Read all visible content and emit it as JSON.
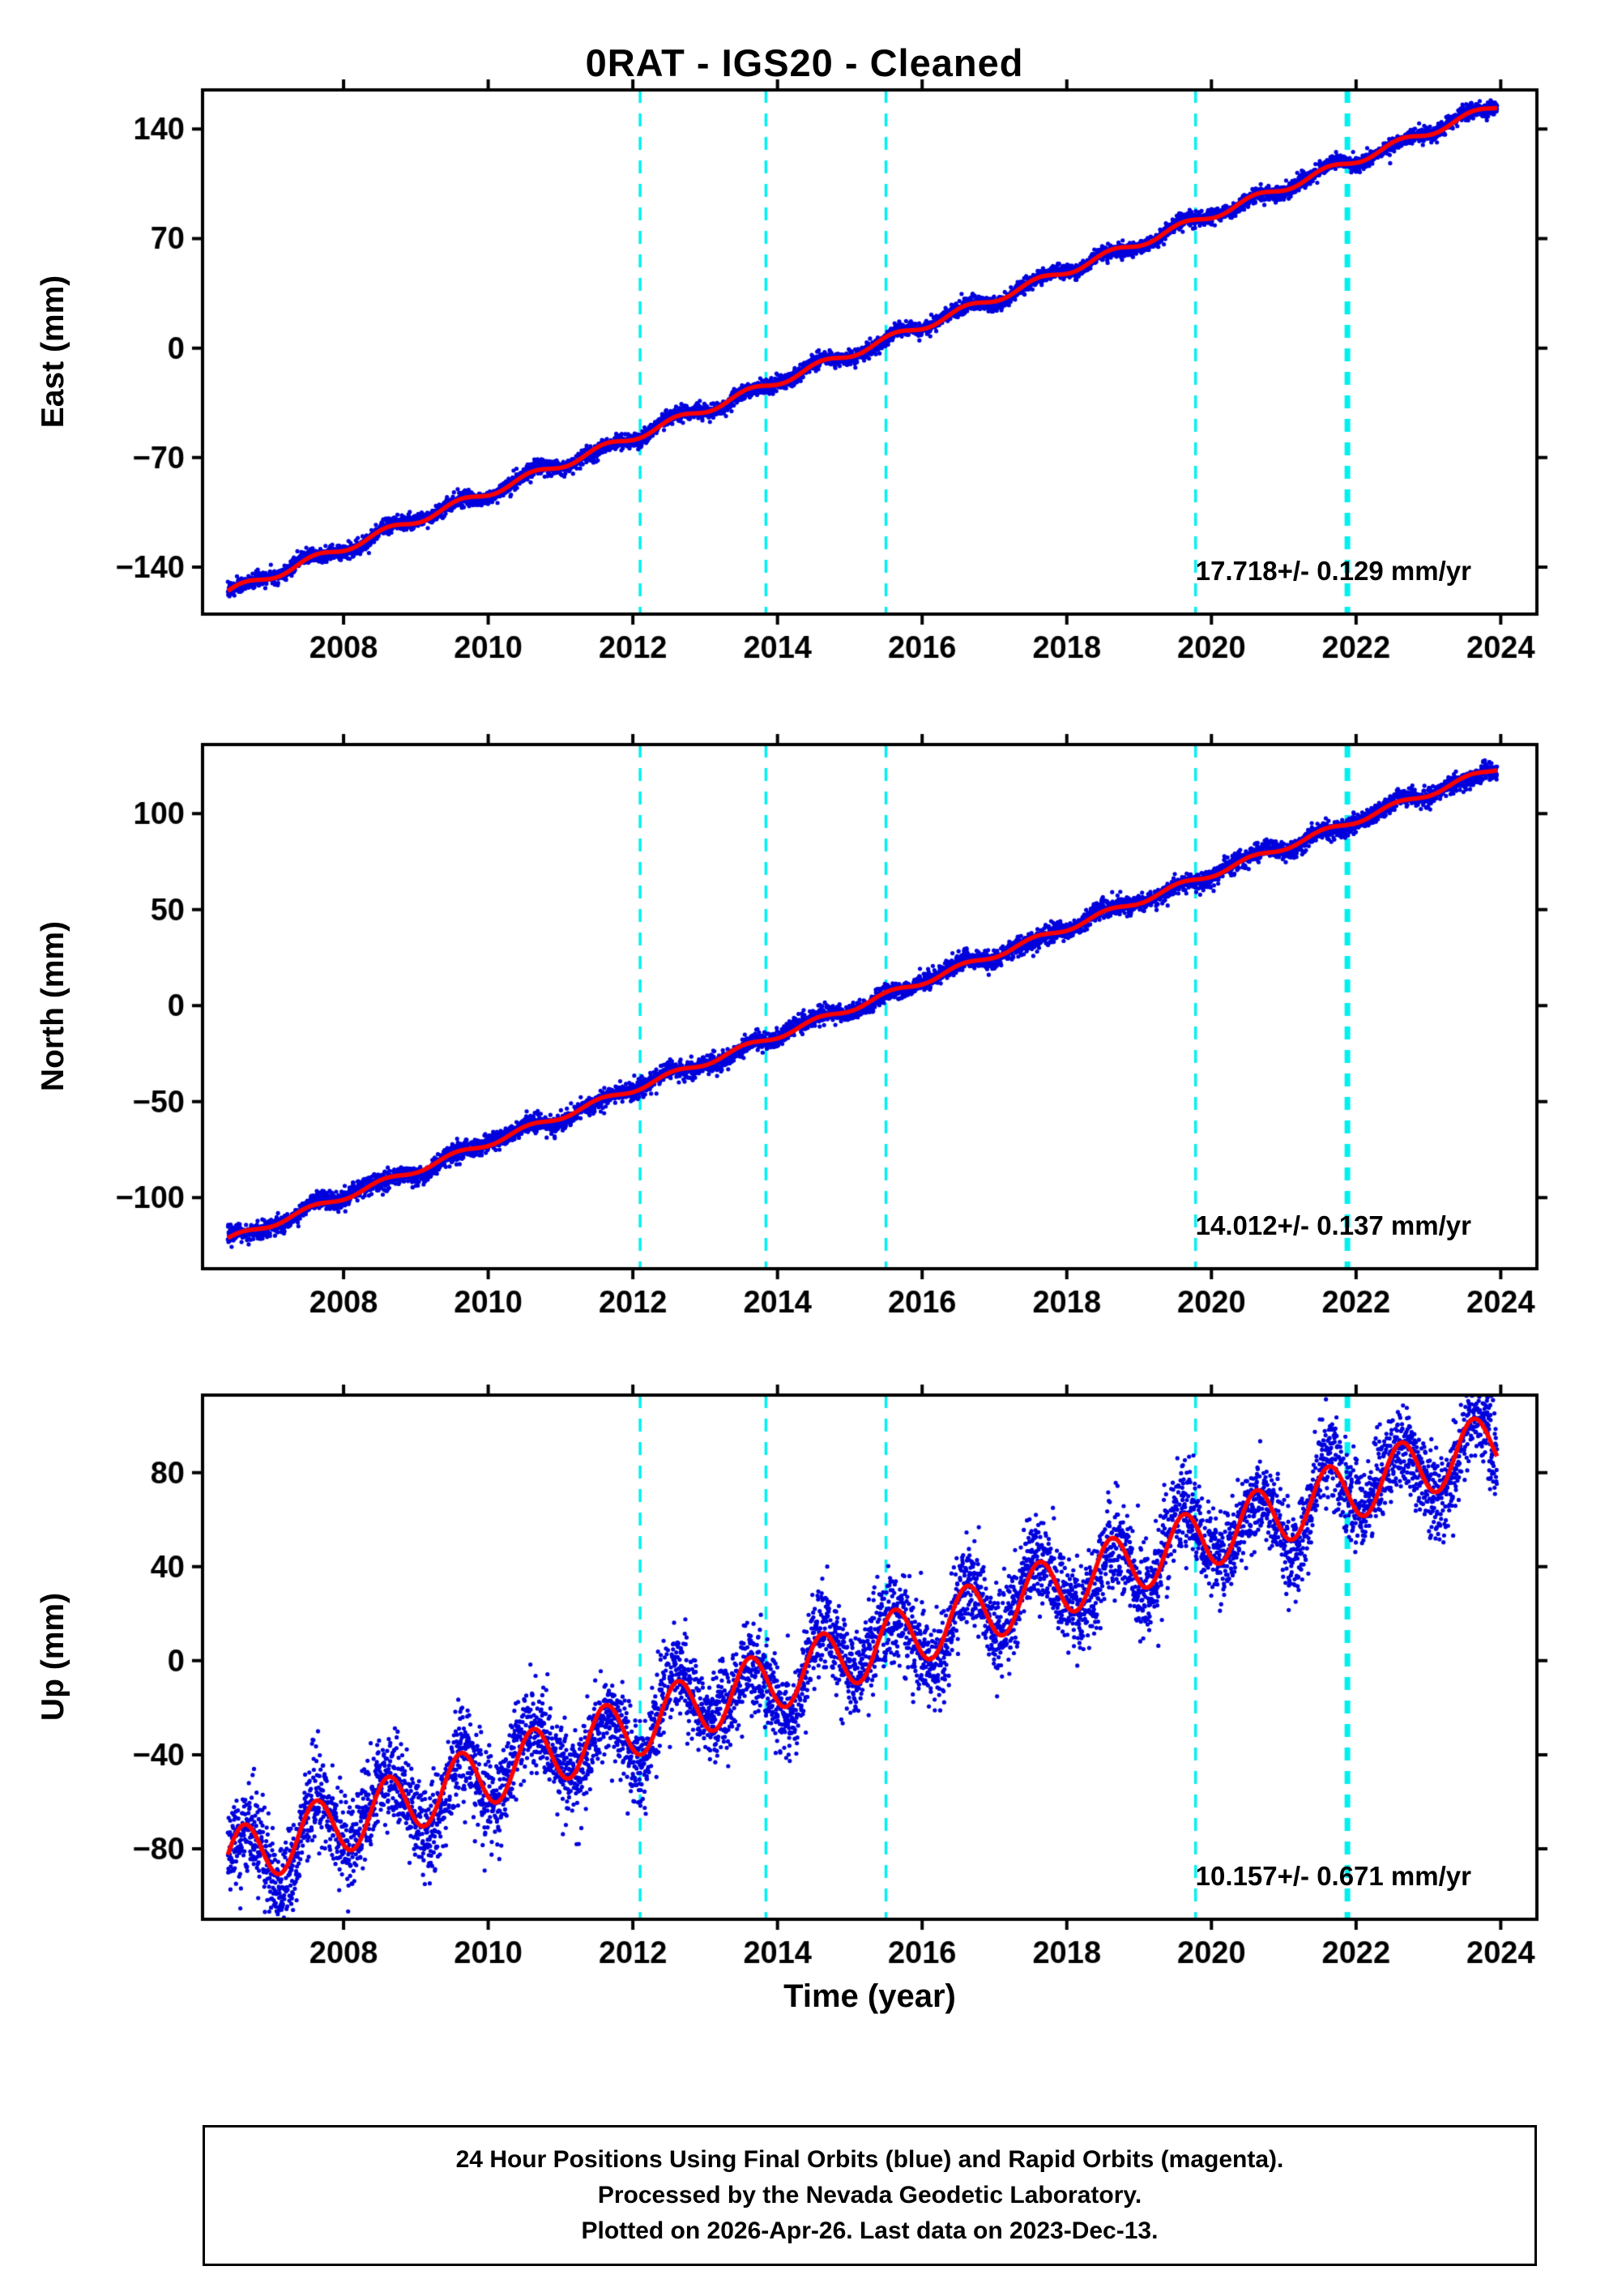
{
  "title": "0RAT - IGS20 - Cleaned",
  "xlabel": "Time (year)",
  "caption": {
    "lines": [
      "24 Hour Positions Using Final Orbits (blue) and Rapid Orbits (magenta).",
      "Processed by the Nevada Geodetic Laboratory.",
      "Plotted on 2026-Apr-26. Last data on 2023-Dec-13."
    ]
  },
  "events": {
    "color": "#00f0f0",
    "lines": [
      {
        "year": 2012.1,
        "weight": "thin"
      },
      {
        "year": 2013.84,
        "weight": "thin"
      },
      {
        "year": 2015.5,
        "weight": "thin"
      },
      {
        "year": 2019.78,
        "weight": "thin"
      },
      {
        "year": 2021.88,
        "weight": "thick"
      }
    ]
  },
  "chart_data": [
    {
      "type": "scatter",
      "component": "east",
      "ylabel": "East (mm)",
      "rate_label": "17.718+/- 0.129 mm/yr",
      "rate_mm_per_yr": 17.718,
      "rate_sigma_mm_per_yr": 0.129,
      "xlim": [
        2006.05,
        2024.5
      ],
      "ylim": [
        -170,
        165
      ],
      "xticks": [
        2008,
        2010,
        2012,
        2014,
        2016,
        2018,
        2020,
        2022,
        2024
      ],
      "yticks": [
        140,
        70,
        0,
        -70,
        -140
      ],
      "point_color": "#0000dd",
      "trend_color": "#ff0000",
      "seed": 7,
      "series": {
        "start_year": 2006.4,
        "end_year": 2023.95,
        "value_start_mm": -156,
        "value_end_mm": 155,
        "seasonal_amp_mm": 2.5,
        "seasonal_peak_yearfrac": 0.6,
        "noise_sigma_mm": 2.3,
        "samples_per_year": 365
      },
      "wander": {
        "a1": 1.3,
        "p1": 1.8,
        "f1": 1.0,
        "a2": 0.9,
        "p2": 0.55,
        "f2": 2.2
      }
    },
    {
      "type": "scatter",
      "component": "north",
      "ylabel": "North (mm)",
      "rate_label": "14.012+/- 0.137 mm/yr",
      "rate_mm_per_yr": 14.012,
      "rate_sigma_mm_per_yr": 0.137,
      "xlim": [
        2006.05,
        2024.5
      ],
      "ylim": [
        -137,
        136
      ],
      "xticks": [
        2008,
        2010,
        2012,
        2014,
        2016,
        2018,
        2020,
        2022,
        2024
      ],
      "yticks": [
        100,
        50,
        0,
        -50,
        -100
      ],
      "point_color": "#0000dd",
      "trend_color": "#ff0000",
      "seed": 13,
      "series": {
        "start_year": 2006.4,
        "end_year": 2023.95,
        "value_start_mm": -122,
        "value_end_mm": 124,
        "seasonal_amp_mm": 1.6,
        "seasonal_peak_yearfrac": 0.55,
        "noise_sigma_mm": 2.3,
        "samples_per_year": 365
      },
      "wander": {
        "a1": 1.2,
        "p1": 2.1,
        "f1": 0.4,
        "a2": 0.9,
        "p2": 0.6,
        "f2": 1.3
      }
    },
    {
      "type": "scatter",
      "component": "up",
      "ylabel": "Up (mm)",
      "rate_label": "10.157+/- 0.671 mm/yr",
      "rate_mm_per_yr": 10.157,
      "rate_sigma_mm_per_yr": 0.671,
      "xlim": [
        2006.05,
        2024.5
      ],
      "ylim": [
        -110,
        113
      ],
      "xticks": [
        2008,
        2010,
        2012,
        2014,
        2016,
        2018,
        2020,
        2022,
        2024
      ],
      "yticks": [
        80,
        40,
        0,
        -40,
        -80
      ],
      "point_color": "#0000dd",
      "trend_color": "#ff0000",
      "seed": 29,
      "series": {
        "start_year": 2006.4,
        "end_year": 2023.95,
        "value_start_mm": -85,
        "value_end_mm": 93,
        "seasonal_amp_mm": 13,
        "seasonal_peak_yearfrac": 0.62,
        "noise_sigma_mm": 9.5,
        "samples_per_year": 365
      },
      "wander": {
        "a1": 3.5,
        "p1": 2.3,
        "f1": 0.7,
        "a2": 2.5,
        "p2": 0.7,
        "f2": 1.9
      }
    }
  ]
}
